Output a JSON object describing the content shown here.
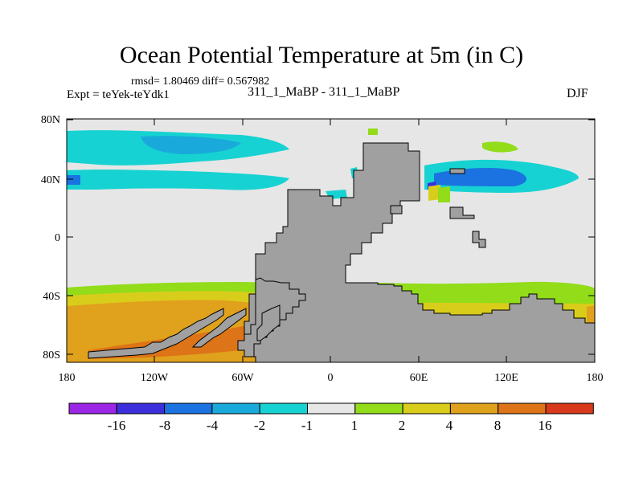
{
  "header": {
    "title": "Ocean Potential Temperature at 5m (in C)",
    "stats": "rmsd= 1.80469 diff= 0.567982",
    "experiment": "Expt = teYek-teYdk1",
    "runs": "311_1_MaBP - 311_1_MaBP",
    "season": "DJF"
  },
  "map": {
    "y_ticks": [
      "80N",
      "40N",
      "0",
      "40S",
      "80S"
    ],
    "x_ticks": [
      "180",
      "120W",
      "60W",
      "0",
      "60E",
      "120E",
      "180"
    ],
    "land_color": "#a0a0a0",
    "ocean_color": "#e6e6e6"
  },
  "colorbar": {
    "colors": [
      "#9b26e6",
      "#3c2fdb",
      "#1a73e0",
      "#19aadb",
      "#17d2d2",
      "#e6e6e6",
      "#92dc1a",
      "#d9cd1b",
      "#e0a11c",
      "#dd7418",
      "#d7391a"
    ],
    "labels": [
      "-16",
      "-8",
      "-4",
      "-2",
      "-1",
      "1",
      "2",
      "4",
      "8",
      "16"
    ]
  }
}
